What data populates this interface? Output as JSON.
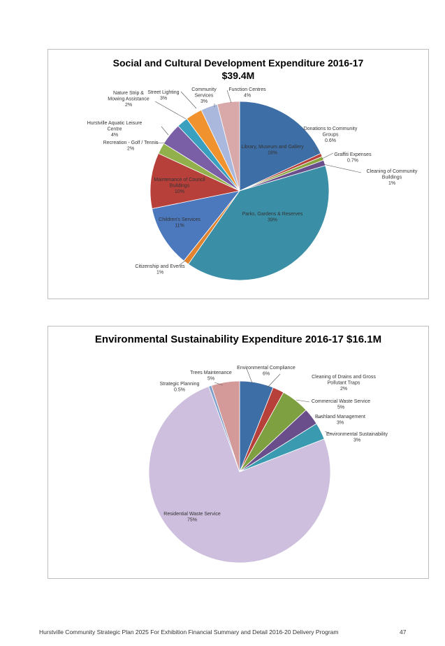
{
  "chart_data": [
    {
      "type": "pie",
      "title_line1": "Social and Cultural Development Expenditure 2016-17",
      "title_line2": "$39.4M",
      "slices": [
        {
          "label": "Library, Museum and Gallery",
          "pct_label": "18%",
          "value": 18,
          "color": "#3e6ea6"
        },
        {
          "label": "Donations to Community Groups",
          "pct_label": "0.6%",
          "value": 0.6,
          "color": "#b8403b"
        },
        {
          "label": "Graffiti Expenses",
          "pct_label": "0.7%",
          "value": 0.7,
          "color": "#8aa63f"
        },
        {
          "label": "Cleaning of Community Buildings",
          "pct_label": "1%",
          "value": 1,
          "color": "#6a4e8c"
        },
        {
          "label": "Parks, Gardens & Reserves",
          "pct_label": "39%",
          "value": 39,
          "color": "#3a8fa6"
        },
        {
          "label": "Citizenship and Events",
          "pct_label": "1%",
          "value": 1,
          "color": "#e0822e"
        },
        {
          "label": "Children's Services",
          "pct_label": "11%",
          "value": 11,
          "color": "#4c79bd"
        },
        {
          "label": "Maintenance of Council Buildings",
          "pct_label": "10%",
          "value": 10,
          "color": "#b8403b"
        },
        {
          "label": "Recreation - Golf / Tennis",
          "pct_label": "2%",
          "value": 2,
          "color": "#92b04c"
        },
        {
          "label": "Hurstville Aquatic Leisure Centre",
          "pct_label": "4%",
          "value": 4,
          "color": "#7a5ea6"
        },
        {
          "label": "Nature Strip & Mowing Assistance",
          "pct_label": "2%",
          "value": 2,
          "color": "#3aa0c0"
        },
        {
          "label": "Street Lighting",
          "pct_label": "3%",
          "value": 3,
          "color": "#f0932e"
        },
        {
          "label": "Community Services",
          "pct_label": "3%",
          "value": 3,
          "color": "#a9b8dc"
        },
        {
          "label": "Function Centres",
          "pct_label": "4%",
          "value": 4,
          "color": "#d9a8a8"
        }
      ]
    },
    {
      "type": "pie",
      "title_line1": "Environmental Sustainability Expenditure 2016-17 $16.1M",
      "title_line2": "",
      "slices": [
        {
          "label": "Environmental Compliance",
          "pct_label": "6%",
          "value": 6,
          "color": "#3e6ea6"
        },
        {
          "label": "Cleaning of Drains and Gross Pollutant Traps",
          "pct_label": "2%",
          "value": 2,
          "color": "#b8403b"
        },
        {
          "label": "Commercial Waste Service",
          "pct_label": "5%",
          "value": 5,
          "color": "#7fa040"
        },
        {
          "label": "Bushland Management",
          "pct_label": "3%",
          "value": 3,
          "color": "#6a4e8c"
        },
        {
          "label": "Environmental Sustainability",
          "pct_label": "3%",
          "value": 3,
          "color": "#3a9ab0"
        },
        {
          "label": "Residential Waste Service",
          "pct_label": "75%",
          "value": 75,
          "color": "#cdbfdd"
        },
        {
          "label": "Strategic Planning",
          "pct_label": "0.5%",
          "value": 0.5,
          "color": "#7da0cc"
        },
        {
          "label": "Trees Maintenance",
          "pct_label": "5%",
          "value": 5,
          "color": "#d49a9a"
        }
      ]
    }
  ],
  "footer": {
    "left": "Hurstville Community Strategic Plan 2025    For Exhibition Financial Summary and Detail 2016-20 Delivery Program",
    "page_number": "47"
  }
}
